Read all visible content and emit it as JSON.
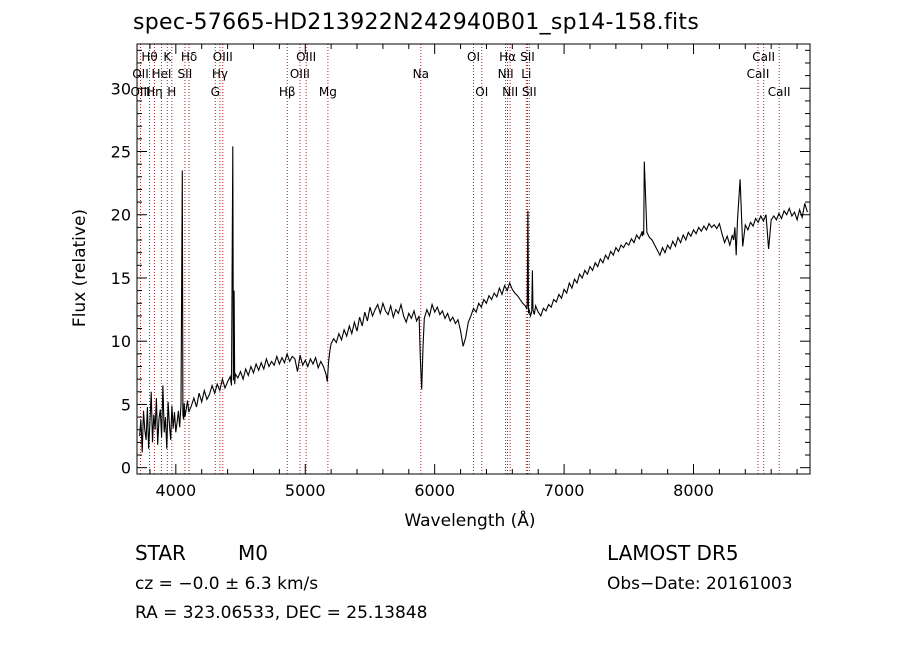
{
  "chart_data": {
    "type": "line",
    "title": "spec-57665-HD213922N242940B01_sp14-158.fits",
    "xlabel": "Wavelength (Å)",
    "ylabel": "Flux (relative)",
    "xlim": [
      3700,
      8900
    ],
    "ylim": [
      -0.5,
      33.5
    ],
    "xticks": [
      {
        "value": 4000,
        "label": "4000"
      },
      {
        "value": 5000,
        "label": "5000"
      },
      {
        "value": 6000,
        "label": "6000"
      },
      {
        "value": 7000,
        "label": "7000"
      },
      {
        "value": 8000,
        "label": "8000"
      }
    ],
    "yticks": [
      {
        "value": 0,
        "label": "0"
      },
      {
        "value": 5,
        "label": "5"
      },
      {
        "value": 10,
        "label": "10"
      },
      {
        "value": 15,
        "label": "15"
      },
      {
        "value": 20,
        "label": "20"
      },
      {
        "value": 25,
        "label": "25"
      },
      {
        "value": 30,
        "label": "30"
      }
    ],
    "line_color": "#000000",
    "marker_line_color": "#b22222",
    "lines": [
      {
        "label": "Hθ",
        "wave": 3797,
        "row": 1
      },
      {
        "label": "OII",
        "wave": 3727,
        "row": 2
      },
      {
        "label": "OIII",
        "wave": 3727,
        "row": 3
      },
      {
        "label": "K",
        "wave": 3934,
        "row": 1
      },
      {
        "label": "HeI",
        "wave": 3889,
        "row": 2
      },
      {
        "label": "Hη",
        "wave": 3835,
        "row": 3
      },
      {
        "label": "H",
        "wave": 3969,
        "row": 3
      },
      {
        "label": "Hδ",
        "wave": 4102,
        "row": 1
      },
      {
        "label": "SII",
        "wave": 4070,
        "row": 2
      },
      {
        "label": "OIII",
        "wave": 4363,
        "row": 1
      },
      {
        "label": "Hγ",
        "wave": 4341,
        "row": 2
      },
      {
        "label": "G",
        "wave": 4305,
        "row": 3
      },
      {
        "label": "Hβ",
        "wave": 4861,
        "row": 3
      },
      {
        "label": "OIII",
        "wave": 5007,
        "row": 1
      },
      {
        "label": "OIII",
        "wave": 4959,
        "row": 2
      },
      {
        "label": "Mg",
        "wave": 5175,
        "row": 3
      },
      {
        "label": "Na",
        "wave": 5893,
        "row": 2
      },
      {
        "label": "OI",
        "wave": 6300,
        "row": 1
      },
      {
        "label": "OI",
        "wave": 6364,
        "row": 3
      },
      {
        "label": "Hα",
        "wave": 6563,
        "row": 1
      },
      {
        "label": "NII",
        "wave": 6548,
        "row": 2
      },
      {
        "label": "NII",
        "wave": 6583,
        "row": 3
      },
      {
        "label": "SII",
        "wave": 6717,
        "row": 1
      },
      {
        "label": "Li",
        "wave": 6708,
        "row": 2
      },
      {
        "label": "SII",
        "wave": 6731,
        "row": 3
      },
      {
        "label": "CaII",
        "wave": 8542,
        "row": 1
      },
      {
        "label": "CaII",
        "wave": 8498,
        "row": 2
      },
      {
        "label": "CaII",
        "wave": 8662,
        "row": 3
      }
    ],
    "series": [
      {
        "x": [
          3720,
          3730,
          3740,
          3750,
          3760,
          3770,
          3780,
          3790,
          3800,
          3810,
          3820,
          3830,
          3840,
          3850,
          3860,
          3870,
          3880,
          3890,
          3900,
          3910,
          3920,
          3930,
          3940,
          3950,
          3960,
          3970,
          3980,
          3990,
          4000,
          4010,
          4020,
          4030,
          4040,
          4050,
          4055,
          4060,
          4065,
          4070,
          4080,
          4090,
          4100,
          4120,
          4140,
          4160,
          4180,
          4200,
          4220,
          4240,
          4260,
          4280,
          4300,
          4320,
          4340,
          4360,
          4380,
          4400,
          4420,
          4430,
          4440,
          4445,
          4450,
          4455,
          4460,
          4480,
          4500,
          4520,
          4540,
          4560,
          4580,
          4600,
          4620,
          4640,
          4660,
          4680,
          4700,
          4720,
          4740,
          4760,
          4780,
          4800,
          4820,
          4840,
          4860,
          4880,
          4900,
          4920,
          4940,
          4960,
          4980,
          5000,
          5020,
          5040,
          5060,
          5080,
          5100,
          5120,
          5140,
          5160,
          5170,
          5180,
          5190,
          5200,
          5220,
          5240,
          5260,
          5280,
          5300,
          5320,
          5340,
          5360,
          5380,
          5400,
          5420,
          5440,
          5460,
          5480,
          5500,
          5520,
          5540,
          5560,
          5580,
          5600,
          5620,
          5640,
          5660,
          5680,
          5700,
          5720,
          5740,
          5760,
          5780,
          5800,
          5820,
          5840,
          5860,
          5880,
          5890,
          5900,
          5910,
          5920,
          5940,
          5960,
          5980,
          6000,
          6020,
          6040,
          6060,
          6080,
          6100,
          6120,
          6140,
          6160,
          6180,
          6200,
          6220,
          6240,
          6260,
          6280,
          6300,
          6320,
          6340,
          6360,
          6380,
          6400,
          6420,
          6440,
          6460,
          6480,
          6500,
          6520,
          6540,
          6560,
          6580,
          6600,
          6620,
          6640,
          6660,
          6680,
          6700,
          6710,
          6715,
          6720,
          6725,
          6730,
          6740,
          6750,
          6755,
          6760,
          6770,
          6780,
          6800,
          6820,
          6840,
          6860,
          6880,
          6900,
          6920,
          6940,
          6960,
          6980,
          7000,
          7020,
          7040,
          7060,
          7080,
          7100,
          7120,
          7140,
          7160,
          7180,
          7200,
          7220,
          7240,
          7260,
          7280,
          7300,
          7320,
          7340,
          7360,
          7380,
          7400,
          7420,
          7440,
          7460,
          7480,
          7500,
          7520,
          7540,
          7560,
          7580,
          7600,
          7605,
          7610,
          7615,
          7620,
          7640,
          7660,
          7680,
          7700,
          7720,
          7740,
          7760,
          7780,
          7800,
          7820,
          7840,
          7860,
          7880,
          7900,
          7920,
          7940,
          7960,
          7980,
          8000,
          8020,
          8040,
          8060,
          8080,
          8100,
          8120,
          8140,
          8160,
          8180,
          8200,
          8220,
          8240,
          8260,
          8280,
          8300,
          8310,
          8320,
          8330,
          8340,
          8360,
          8380,
          8400,
          8420,
          8440,
          8460,
          8480,
          8500,
          8520,
          8540,
          8560,
          8580,
          8600,
          8620,
          8640,
          8660,
          8680,
          8700,
          8720,
          8740,
          8760,
          8780,
          8800,
          8820,
          8840,
          8860,
          8880
        ],
        "y": [
          2.5,
          3.8,
          1.2,
          4.5,
          3.0,
          2.2,
          4.8,
          1.5,
          3.5,
          6.0,
          2.0,
          4.2,
          3.0,
          5.5,
          1.8,
          3.9,
          4.6,
          2.4,
          6.5,
          2.8,
          4.0,
          1.5,
          5.2,
          3.4,
          2.2,
          4.9,
          3.1,
          4.4,
          2.8,
          3.6,
          4.5,
          3.2,
          5.0,
          23.5,
          4.2,
          3.8,
          5.1,
          4.0,
          4.6,
          5.3,
          4.4,
          4.9,
          5.5,
          4.8,
          5.9,
          5.2,
          6.1,
          5.4,
          5.8,
          6.5,
          5.9,
          6.6,
          6.1,
          7.0,
          6.3,
          6.8,
          7.2,
          6.5,
          25.4,
          6.9,
          14.0,
          6.6,
          7.4,
          7.1,
          7.6,
          7.0,
          7.8,
          7.3,
          8.0,
          7.5,
          8.2,
          7.7,
          8.3,
          7.8,
          8.6,
          8.0,
          8.4,
          8.1,
          8.8,
          8.2,
          8.7,
          8.3,
          9.0,
          8.4,
          8.8,
          8.6,
          7.6,
          8.9,
          8.1,
          8.5,
          8.0,
          8.6,
          8.2,
          8.7,
          7.9,
          8.4,
          8.0,
          7.4,
          6.8,
          8.3,
          9.2,
          9.8,
          10.2,
          9.9,
          10.6,
          10.1,
          10.9,
          10.4,
          11.2,
          10.6,
          11.5,
          10.8,
          11.9,
          11.2,
          12.3,
          11.6,
          12.7,
          12.0,
          12.5,
          12.9,
          12.2,
          13.0,
          12.4,
          12.1,
          12.8,
          11.9,
          12.5,
          12.2,
          12.9,
          12.0,
          11.5,
          12.2,
          11.8,
          12.4,
          11.6,
          12.0,
          8.5,
          6.2,
          9.5,
          11.8,
          12.5,
          12.0,
          12.9,
          12.3,
          12.7,
          12.1,
          12.4,
          11.8,
          12.2,
          11.6,
          11.9,
          11.4,
          11.7,
          10.8,
          9.6,
          10.3,
          11.5,
          12.0,
          12.6,
          12.3,
          13.0,
          12.7,
          13.3,
          13.0,
          13.6,
          13.3,
          13.8,
          13.5,
          14.2,
          13.7,
          14.4,
          14.0,
          14.6,
          14.1,
          13.8,
          13.6,
          13.3,
          13.0,
          12.8,
          12.6,
          12.8,
          20.3,
          12.2,
          12.5,
          12.0,
          12.3,
          15.6,
          12.5,
          12.1,
          12.8,
          12.3,
          12.0,
          12.6,
          12.4,
          12.9,
          12.7,
          13.3,
          13.1,
          13.7,
          13.4,
          14.1,
          13.8,
          14.6,
          14.2,
          14.9,
          14.6,
          15.3,
          15.0,
          15.6,
          15.3,
          15.9,
          15.6,
          16.2,
          15.9,
          16.5,
          16.2,
          16.8,
          16.5,
          17.1,
          16.8,
          17.4,
          17.1,
          17.6,
          17.4,
          17.8,
          17.6,
          18.1,
          17.8,
          18.4,
          18.1,
          18.6,
          18.3,
          18.7,
          18.4,
          24.2,
          18.6,
          18.2,
          18.0,
          17.6,
          17.2,
          16.8,
          17.4,
          17.0,
          17.6,
          17.3,
          17.9,
          17.5,
          18.2,
          17.8,
          18.4,
          18.0,
          18.6,
          18.3,
          18.8,
          18.5,
          19.0,
          18.7,
          19.1,
          18.8,
          19.3,
          19.0,
          19.2,
          18.9,
          19.3,
          18.5,
          17.8,
          18.3,
          17.6,
          18.4,
          18.0,
          19.0,
          16.8,
          19.6,
          22.8,
          17.5,
          19.2,
          18.8,
          19.4,
          19.1,
          19.7,
          19.4,
          19.9,
          19.5,
          20.0,
          17.3,
          19.6,
          19.9,
          19.6,
          20.1,
          19.7,
          20.3,
          20.0,
          20.5,
          19.9,
          20.2,
          19.6,
          20.4,
          19.8,
          20.9,
          20.2
        ]
      }
    ]
  },
  "info": {
    "obj_class": "STAR",
    "obj_subclass": "M0",
    "survey": "LAMOST DR5",
    "cz": "cz = −0.0 ± 6.3 km/s",
    "obs_date": "Obs−Date: 20161003",
    "radec": "RA = 323.06533, DEC =  25.13848"
  }
}
